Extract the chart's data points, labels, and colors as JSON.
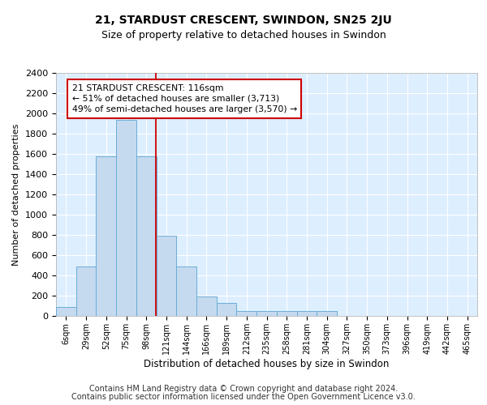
{
  "title": "21, STARDUST CRESCENT, SWINDON, SN25 2JU",
  "subtitle": "Size of property relative to detached houses in Swindon",
  "xlabel": "Distribution of detached houses by size in Swindon",
  "ylabel": "Number of detached properties",
  "footer_line1": "Contains HM Land Registry data © Crown copyright and database right 2024.",
  "footer_line2": "Contains public sector information licensed under the Open Government Licence v3.0.",
  "bin_labels": [
    "6sqm",
    "29sqm",
    "52sqm",
    "75sqm",
    "98sqm",
    "121sqm",
    "144sqm",
    "166sqm",
    "189sqm",
    "212sqm",
    "235sqm",
    "258sqm",
    "281sqm",
    "304sqm",
    "327sqm",
    "350sqm",
    "373sqm",
    "396sqm",
    "419sqm",
    "442sqm",
    "465sqm"
  ],
  "bar_values": [
    90,
    490,
    1580,
    1940,
    1580,
    790,
    490,
    190,
    125,
    45,
    45,
    45,
    45,
    45,
    0,
    0,
    0,
    0,
    0,
    0,
    0
  ],
  "bar_color": "#c5d9ef",
  "bar_edge_color": "#6aaed6",
  "bar_linewidth": 0.7,
  "vline_x": 4.47,
  "vline_color": "#cc0000",
  "annotation_line1": "21 STARDUST CRESCENT: 116sqm",
  "annotation_line2": "← 51% of detached houses are smaller (3,713)",
  "annotation_line3": "49% of semi-detached houses are larger (3,570) →",
  "annotation_box_facecolor": "#ffffff",
  "annotation_box_edgecolor": "#cc0000",
  "annotation_fontsize": 7.8,
  "ylim_max": 2400,
  "yticks": [
    0,
    200,
    400,
    600,
    800,
    1000,
    1200,
    1400,
    1600,
    1800,
    2000,
    2200,
    2400
  ],
  "bg_color": "#ddeeff",
  "grid_color": "#ffffff",
  "title_fontsize": 10,
  "subtitle_fontsize": 9,
  "xlabel_fontsize": 8.5,
  "ylabel_fontsize": 8,
  "xtick_fontsize": 7,
  "ytick_fontsize": 8,
  "footer_fontsize": 7
}
